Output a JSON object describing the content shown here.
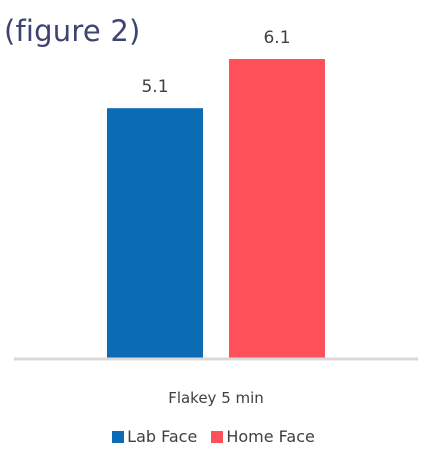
{
  "page": {
    "title": "(figure 2)"
  },
  "chart_data": {
    "type": "bar",
    "categories": [
      "Flakey 5 min"
    ],
    "series": [
      {
        "name": "Lab Face",
        "values": [
          5.1
        ],
        "color": "#0b6cb5"
      },
      {
        "name": "Home Face",
        "values": [
          6.1
        ],
        "color": "#fe5159"
      }
    ],
    "ylim": [
      0,
      7.3
    ],
    "grid": false,
    "legend": "bottom"
  }
}
